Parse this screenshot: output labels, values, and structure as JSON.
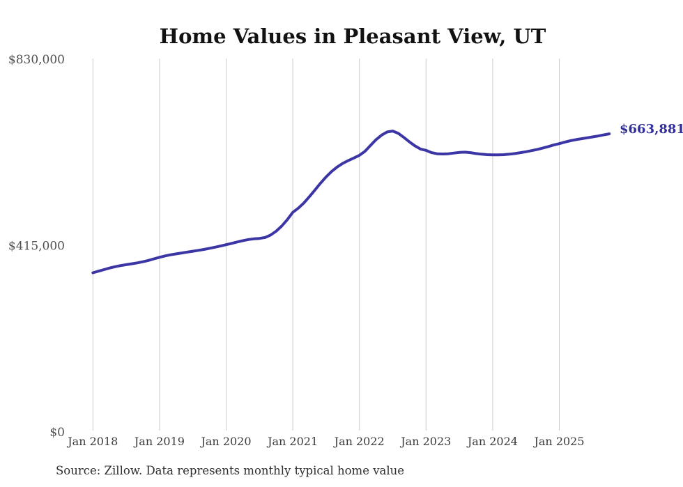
{
  "title": "Home Values in Pleasant View, UT",
  "source_note": "Source: Zillow. Data represents monthly typical home value",
  "end_label": "$663,881",
  "colors": {
    "line": "#3c35a5",
    "end_label": "#312e9c",
    "gridline": "#cccccc",
    "title_text": "#121212",
    "y_tick_text": "#4f4f4f",
    "x_tick_text": "#3a3a3a",
    "source_text": "#2e2e2e",
    "background": "#ffffff"
  },
  "y_axis": {
    "min": 0,
    "max": 830000,
    "ticks": [
      {
        "label": "$830,000",
        "value": 830000
      },
      {
        "label": "$415,000",
        "value": 415000
      },
      {
        "label": "$0",
        "value": 0
      }
    ]
  },
  "x_axis": {
    "ticks": [
      "Jan 2018",
      "Jan 2019",
      "Jan 2020",
      "Jan 2021",
      "Jan 2022",
      "Jan 2023",
      "Jan 2024",
      "Jan 2025"
    ]
  },
  "chart_data": {
    "type": "line",
    "title": "Home Values in Pleasant View, UT",
    "xlabel": "",
    "ylabel": "",
    "x_start": "Jan 2018",
    "x_end": "Oct 2025",
    "frequency": "monthly",
    "ylim": [
      0,
      830000
    ],
    "y_tick_values": [
      0,
      415000,
      830000
    ],
    "x_tick_labels": [
      "Jan 2018",
      "Jan 2019",
      "Jan 2020",
      "Jan 2021",
      "Jan 2022",
      "Jan 2023",
      "Jan 2024",
      "Jan 2025"
    ],
    "grid": "vertical-only",
    "legend": "none",
    "last_point_label": "$663,881",
    "series": [
      {
        "name": "Typical home value",
        "color": "#3c35a5",
        "values": [
          354500,
          358000,
          361500,
          365000,
          368000,
          370500,
          372500,
          374500,
          376500,
          379000,
          382000,
          385500,
          389000,
          392000,
          394500,
          396500,
          398500,
          400500,
          402500,
          404500,
          406500,
          409000,
          411500,
          414000,
          417000,
          420000,
          423000,
          426000,
          428500,
          430000,
          431000,
          433000,
          438500,
          447000,
          458500,
          472500,
          489000,
          498500,
          510000,
          524000,
          539000,
          554000,
          568000,
          580000,
          590000,
          598000,
          604500,
          610000,
          616000,
          625000,
          638000,
          651000,
          661000,
          668000,
          670000,
          665000,
          656000,
          646000,
          637000,
          630000,
          627000,
          622000,
          619500,
          619000,
          619500,
          621000,
          622500,
          623000,
          622000,
          620000,
          618500,
          617500,
          617000,
          617000,
          617500,
          618500,
          620000,
          622000,
          624000,
          626500,
          629000,
          632000,
          635500,
          639000,
          642000,
          645500,
          648500,
          651000,
          653000,
          655000,
          657000,
          659000,
          661500,
          663881
        ]
      }
    ]
  }
}
